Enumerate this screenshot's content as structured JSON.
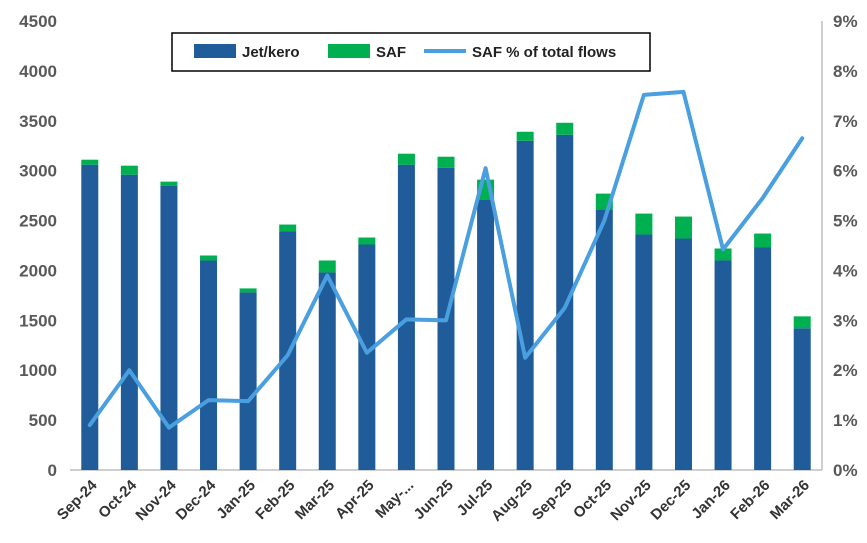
{
  "chart_data": {
    "type": "bar",
    "stacked": true,
    "categories": [
      "Sep-24",
      "Oct-24",
      "Nov-24",
      "Dec-24",
      "Jan-25",
      "Feb-25",
      "Mar-25",
      "Apr-25",
      "May-...",
      "Jun-25",
      "Jul-25",
      "Aug-25",
      "Sep-25",
      "Oct-25",
      "Nov-25",
      "Dec-25",
      "Jan-26",
      "Feb-26",
      "Mar-26"
    ],
    "series": [
      {
        "name": "Jet/kero",
        "type": "bar",
        "axis": "left",
        "color": "#1F5C99",
        "values": [
          3060,
          2960,
          2850,
          2100,
          1780,
          2390,
          1980,
          2260,
          3060,
          3030,
          2710,
          3300,
          3360,
          2610,
          2360,
          2320,
          2100,
          2230,
          1420
        ]
      },
      {
        "name": "SAF",
        "type": "bar",
        "axis": "left",
        "color": "#00B050",
        "values": [
          50,
          90,
          40,
          50,
          40,
          70,
          120,
          70,
          110,
          110,
          200,
          90,
          120,
          160,
          210,
          220,
          120,
          140,
          120
        ]
      },
      {
        "name": "SAF % of total flows",
        "type": "line",
        "axis": "right",
        "color": "#4A9FE0",
        "values": [
          0.9,
          2.0,
          0.85,
          1.4,
          1.38,
          2.3,
          3.9,
          2.35,
          3.02,
          3.0,
          6.05,
          2.25,
          3.25,
          5.0,
          7.52,
          7.58,
          4.42,
          5.45,
          6.65
        ]
      }
    ],
    "y_left": {
      "min": 0,
      "max": 4500,
      "step": 500,
      "ticks": [
        "0",
        "500",
        "1000",
        "1500",
        "2000",
        "2500",
        "3000",
        "3500",
        "4000",
        "4500"
      ]
    },
    "y_right": {
      "min": 0,
      "max": 9,
      "step": 1,
      "ticks": [
        "0%",
        "1%",
        "2%",
        "3%",
        "4%",
        "5%",
        "6%",
        "7%",
        "8%",
        "9%"
      ]
    },
    "legend": {
      "position": "top-center",
      "labels": [
        "Jet/kero",
        "SAF",
        "SAF % of total flows"
      ]
    },
    "title": "",
    "xlabel": "",
    "ylabel": "",
    "grid": false
  }
}
